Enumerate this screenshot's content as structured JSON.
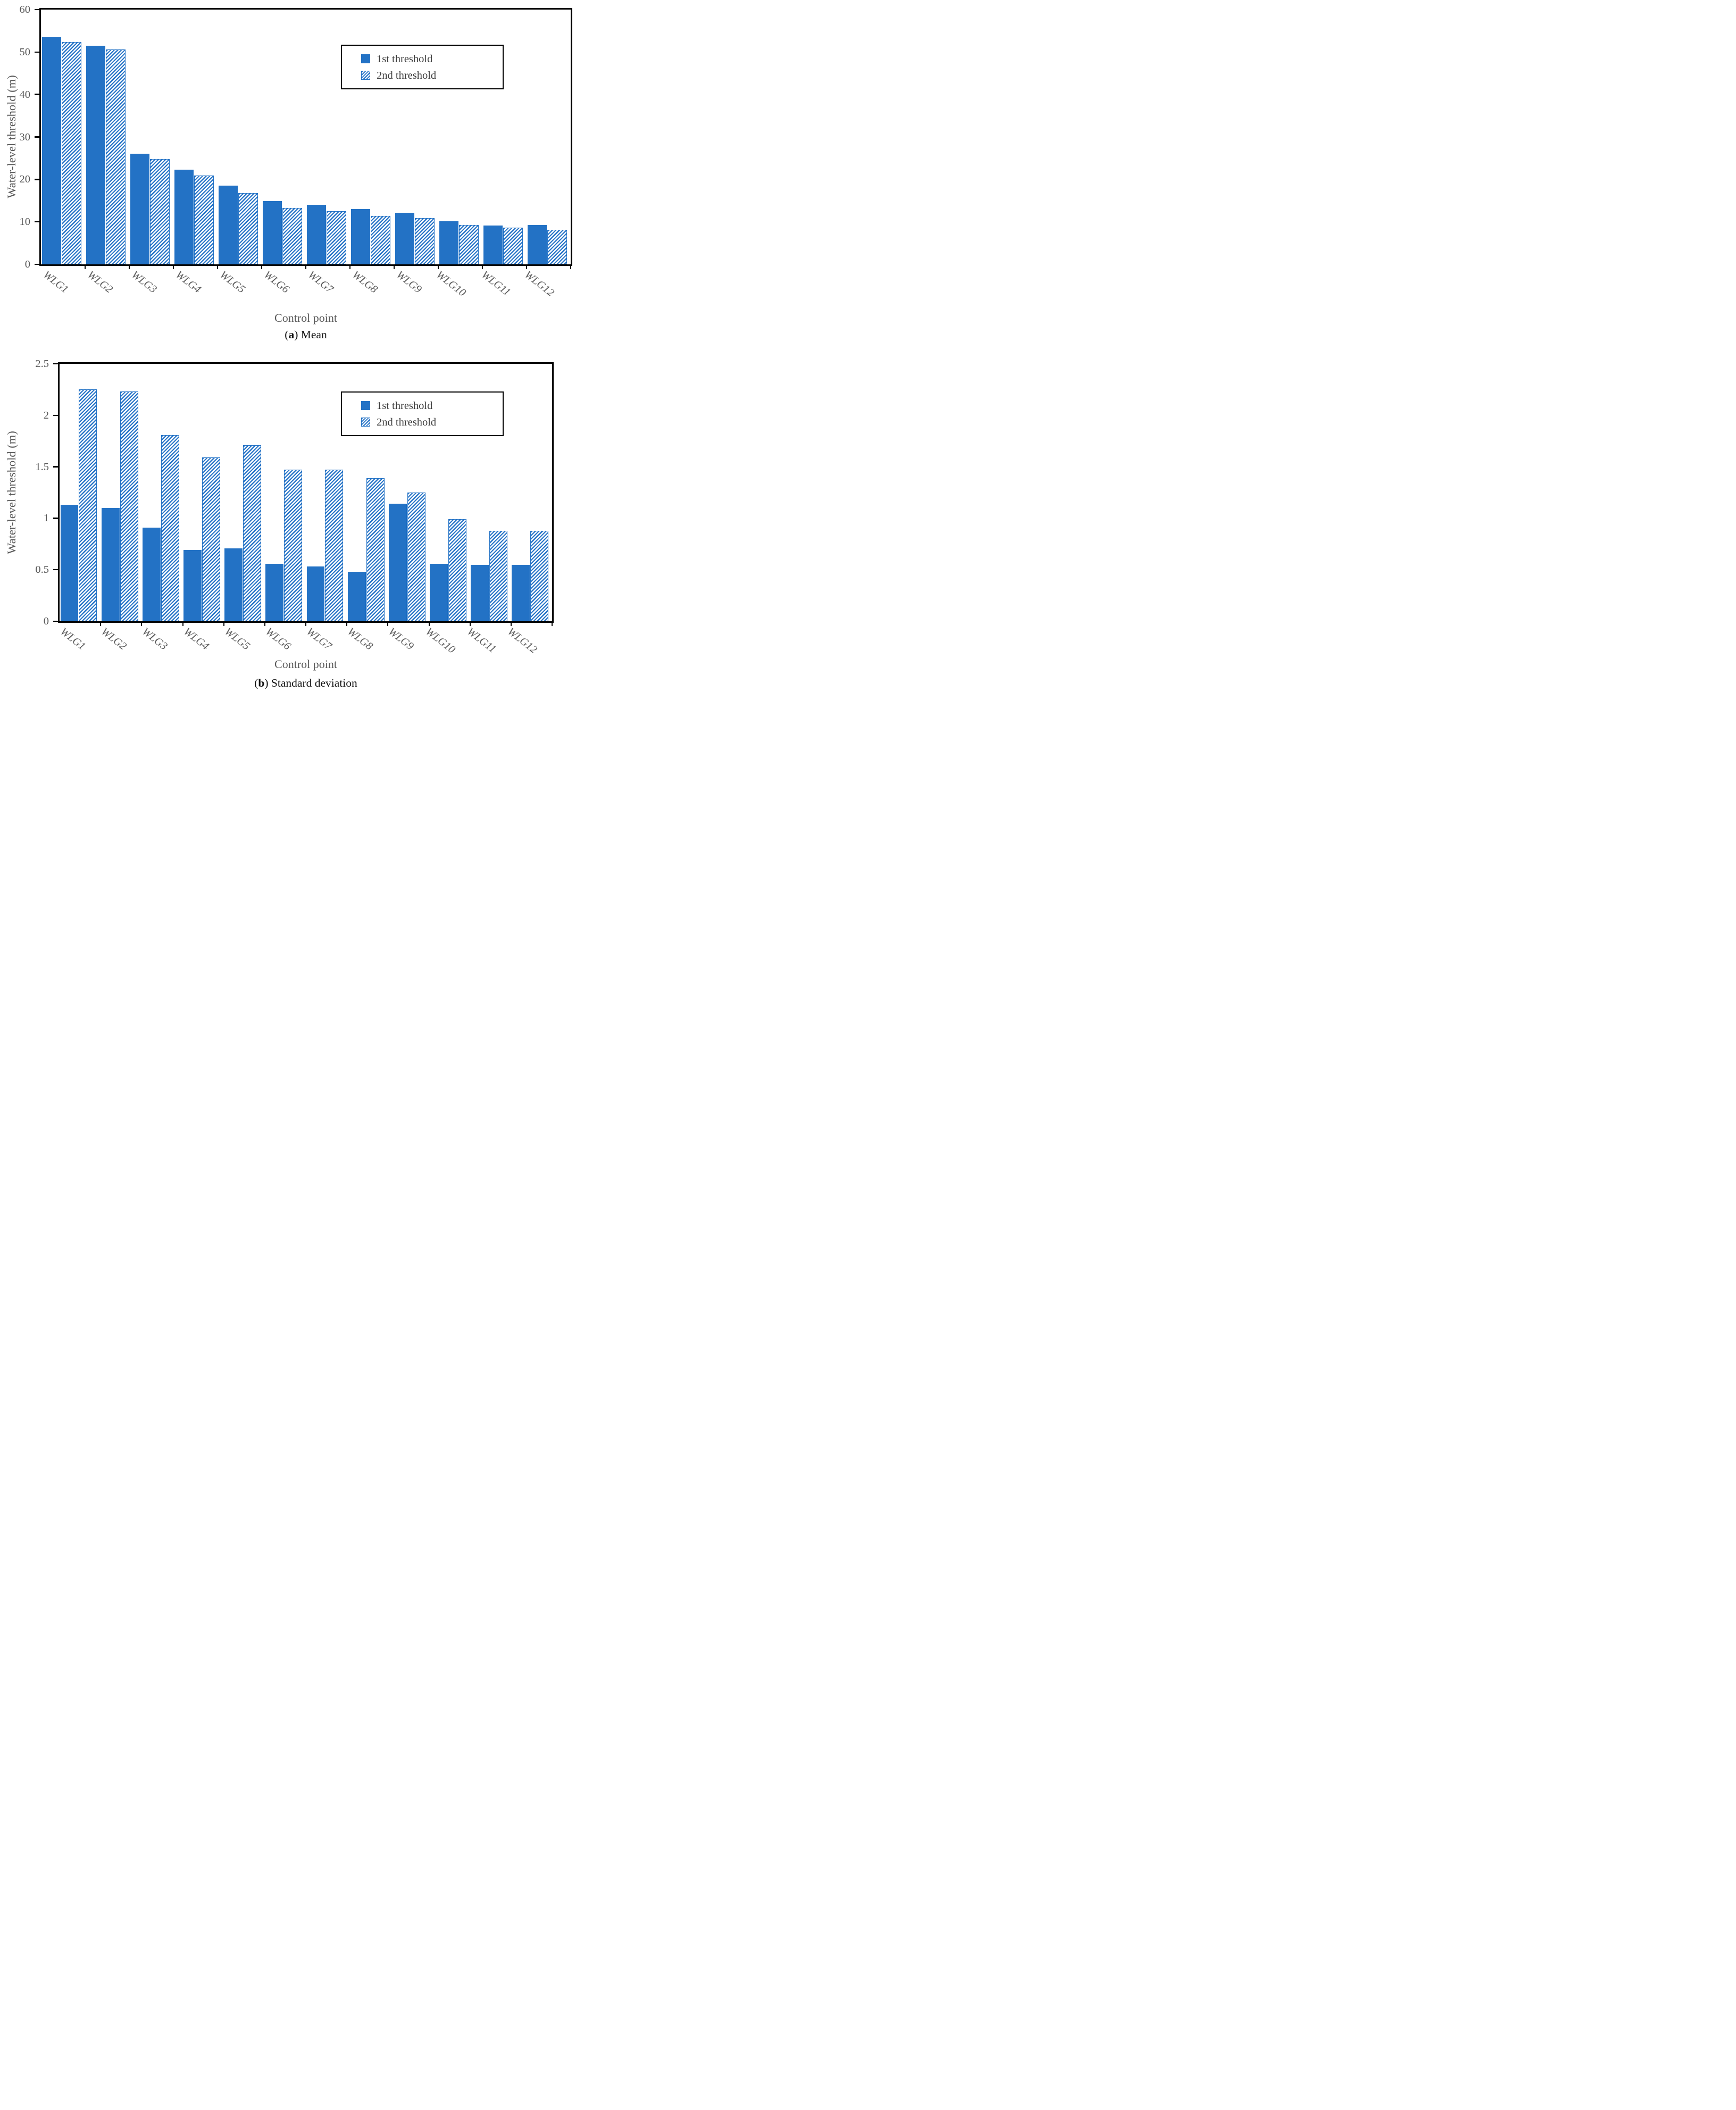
{
  "colors": {
    "bar_blue": "#2372c5",
    "text_gray": "#595959",
    "axis_black": "#000000",
    "caption_black": "#111111"
  },
  "chart_data": [
    {
      "type": "bar",
      "panel": "a",
      "title": "(a) Mean",
      "caption_letter": "a",
      "caption_text": "Mean",
      "xlabel": "Control point",
      "ylabel": "Water-level threshold (m)",
      "categories": [
        "WLG1",
        "WLG2",
        "WLG3",
        "WLG4",
        "WLG5",
        "WLG6",
        "WLG7",
        "WLG8",
        "WLG9",
        "WLG10",
        "WLG11",
        "WLG12"
      ],
      "series": [
        {
          "name": "1st threshold",
          "style": "solid",
          "values": [
            53.5,
            51.5,
            26.0,
            22.3,
            18.5,
            14.9,
            14.0,
            13.0,
            12.2,
            10.2,
            9.2,
            9.3
          ]
        },
        {
          "name": "2nd threshold",
          "style": "hatched",
          "values": [
            52.4,
            50.6,
            24.8,
            20.9,
            16.8,
            13.3,
            12.5,
            11.4,
            10.9,
            9.3,
            8.7,
            8.2
          ]
        }
      ],
      "ylim": [
        0,
        60
      ],
      "yticks": [
        0,
        10,
        20,
        30,
        40,
        50,
        60
      ],
      "ytick_labels": [
        "0",
        "10",
        "20",
        "30",
        "40",
        "50",
        "60"
      ],
      "grid": false,
      "legend_position": "upper-right"
    },
    {
      "type": "bar",
      "panel": "b",
      "title": "(b) Standard deviation",
      "caption_letter": "b",
      "caption_text": "Standard deviation",
      "xlabel": "Control point",
      "ylabel": "Water-level threshold (m)",
      "categories": [
        "WLG1",
        "WLG2",
        "WLG3",
        "WLG4",
        "WLG5",
        "WLG6",
        "WLG7",
        "WLG8",
        "WLG9",
        "WLG10",
        "WLG11",
        "WLG12"
      ],
      "series": [
        {
          "name": "1st threshold",
          "style": "solid",
          "values": [
            1.13,
            1.1,
            0.91,
            0.69,
            0.71,
            0.56,
            0.53,
            0.48,
            1.14,
            0.56,
            0.55,
            0.55
          ]
        },
        {
          "name": "2nd threshold",
          "style": "hatched",
          "values": [
            2.25,
            2.23,
            1.81,
            1.59,
            1.71,
            1.47,
            1.47,
            1.39,
            1.25,
            0.99,
            0.88,
            0.88
          ]
        }
      ],
      "ylim": [
        0,
        2.5
      ],
      "yticks": [
        0,
        0.5,
        1,
        1.5,
        2,
        2.5
      ],
      "ytick_labels": [
        "0",
        "0.5",
        "1",
        "1.5",
        "2",
        "2.5"
      ],
      "grid": false,
      "legend_position": "upper-right"
    }
  ]
}
